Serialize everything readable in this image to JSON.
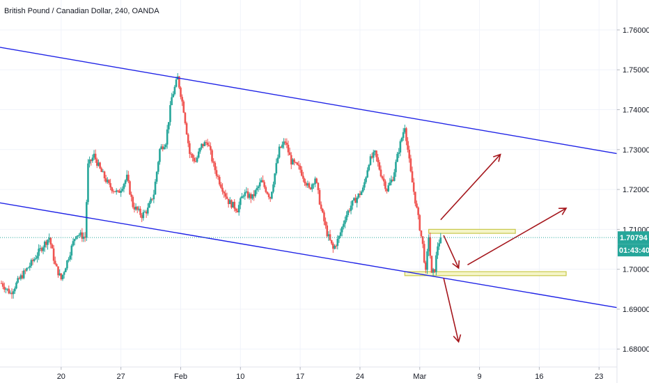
{
  "chart_data": {
    "type": "candlestick",
    "title": "British Pound / Canadian Dollar, 240, OANDA",
    "y_ticks": [
      "1.76000",
      "1.75000",
      "1.74000",
      "1.73000",
      "1.72000",
      "1.71000",
      "1.70000",
      "1.69000",
      "1.68000"
    ],
    "y_tick_values": [
      1.76,
      1.75,
      1.74,
      1.73,
      1.72,
      1.71,
      1.7,
      1.69,
      1.68
    ],
    "ylim": [
      1.6755,
      1.7675
    ],
    "x_ticks": [
      {
        "label": "20",
        "index": 20
      },
      {
        "label": "27",
        "index": 40
      },
      {
        "label": "Feb",
        "index": 60
      },
      {
        "label": "10",
        "index": 80
      },
      {
        "label": "17",
        "index": 100
      },
      {
        "label": "24",
        "index": 120
      },
      {
        "label": "Mar",
        "index": 140
      },
      {
        "label": "9",
        "index": 160
      },
      {
        "label": "16",
        "index": 180
      },
      {
        "label": "23",
        "index": 200
      }
    ],
    "xlim": [
      0,
      206
    ],
    "grid": true,
    "up_color": "#26a69a",
    "down_color": "#ef5350",
    "current_price": {
      "label": "1.70794",
      "value": 1.70794,
      "color": "#26a69a"
    },
    "countdown": {
      "label": "01:43:40"
    },
    "price_path": [
      {
        "i": 0,
        "p": 1.6965
      },
      {
        "i": 3,
        "p": 1.694
      },
      {
        "i": 6,
        "p": 1.6975
      },
      {
        "i": 10,
        "p": 1.7015
      },
      {
        "i": 14,
        "p": 1.706
      },
      {
        "i": 16,
        "p": 1.708
      },
      {
        "i": 18,
        "p": 1.701
      },
      {
        "i": 20,
        "p": 1.6975
      },
      {
        "i": 22,
        "p": 1.702
      },
      {
        "i": 25,
        "p": 1.709
      },
      {
        "i": 28,
        "p": 1.708
      },
      {
        "i": 29,
        "p": 1.726
      },
      {
        "i": 31,
        "p": 1.7285
      },
      {
        "i": 33,
        "p": 1.725
      },
      {
        "i": 36,
        "p": 1.721
      },
      {
        "i": 39,
        "p": 1.719
      },
      {
        "i": 42,
        "p": 1.723
      },
      {
        "i": 44,
        "p": 1.716
      },
      {
        "i": 47,
        "p": 1.7135
      },
      {
        "i": 49,
        "p": 1.715
      },
      {
        "i": 51,
        "p": 1.719
      },
      {
        "i": 53,
        "p": 1.73
      },
      {
        "i": 55,
        "p": 1.732
      },
      {
        "i": 57,
        "p": 1.743
      },
      {
        "i": 59,
        "p": 1.748
      },
      {
        "i": 61,
        "p": 1.74
      },
      {
        "i": 63,
        "p": 1.729
      },
      {
        "i": 65,
        "p": 1.727
      },
      {
        "i": 67,
        "p": 1.731
      },
      {
        "i": 69,
        "p": 1.732
      },
      {
        "i": 71,
        "p": 1.726
      },
      {
        "i": 73,
        "p": 1.722
      },
      {
        "i": 76,
        "p": 1.717
      },
      {
        "i": 79,
        "p": 1.715
      },
      {
        "i": 81,
        "p": 1.719
      },
      {
        "i": 84,
        "p": 1.718
      },
      {
        "i": 87,
        "p": 1.722
      },
      {
        "i": 90,
        "p": 1.718
      },
      {
        "i": 93,
        "p": 1.73
      },
      {
        "i": 95,
        "p": 1.732
      },
      {
        "i": 97,
        "p": 1.727
      },
      {
        "i": 100,
        "p": 1.725
      },
      {
        "i": 103,
        "p": 1.72
      },
      {
        "i": 105,
        "p": 1.723
      },
      {
        "i": 107,
        "p": 1.715
      },
      {
        "i": 109,
        "p": 1.709
      },
      {
        "i": 111,
        "p": 1.705
      },
      {
        "i": 113,
        "p": 1.708
      },
      {
        "i": 115,
        "p": 1.713
      },
      {
        "i": 117,
        "p": 1.716
      },
      {
        "i": 119,
        "p": 1.718
      },
      {
        "i": 121,
        "p": 1.72
      },
      {
        "i": 123,
        "p": 1.727
      },
      {
        "i": 125,
        "p": 1.729
      },
      {
        "i": 127,
        "p": 1.724
      },
      {
        "i": 129,
        "p": 1.72
      },
      {
        "i": 131,
        "p": 1.723
      },
      {
        "i": 133,
        "p": 1.73
      },
      {
        "i": 135,
        "p": 1.736
      },
      {
        "i": 137,
        "p": 1.724
      },
      {
        "i": 139,
        "p": 1.715
      },
      {
        "i": 141,
        "p": 1.706
      },
      {
        "i": 142,
        "p": 1.699
      },
      {
        "i": 143,
        "p": 1.7085
      },
      {
        "i": 144,
        "p": 1.6985
      },
      {
        "i": 145,
        "p": 1.7
      },
      {
        "i": 146,
        "p": 1.706
      },
      {
        "i": 147,
        "p": 1.7079
      }
    ]
  },
  "annotations": {
    "channel_upper": {
      "from": {
        "i": -4,
        "p": 1.7561
      },
      "to": {
        "i": 206,
        "p": 1.729
      },
      "color": "#1e22e6"
    },
    "channel_lower": {
      "from": {
        "i": -4,
        "p": 1.7171
      },
      "to": {
        "i": 206,
        "p": 1.6904
      },
      "color": "#1e22e6"
    },
    "zones": [
      {
        "i1": 143,
        "i2": 172,
        "p1": 1.709,
        "p2": 1.71,
        "fill": "#f5f5c8",
        "stroke": "#c8c84b"
      },
      {
        "i1": 135,
        "i2": 189,
        "p1": 1.6984,
        "p2": 1.6994,
        "fill": "#f5f5c8",
        "stroke": "#c8c84b"
      }
    ],
    "arrows": [
      {
        "from": {
          "i": 147,
          "p": 1.7124
        },
        "to": {
          "i": 167,
          "p": 1.7288
        }
      },
      {
        "from": {
          "i": 148,
          "p": 1.7085
        },
        "to": {
          "i": 153,
          "p": 1.7003
        }
      },
      {
        "from": {
          "i": 156,
          "p": 1.7011
        },
        "to": {
          "i": 189,
          "p": 1.7153
        }
      },
      {
        "from": {
          "i": 148,
          "p": 1.6978
        },
        "to": {
          "i": 153,
          "p": 1.6818
        }
      }
    ],
    "arrow_color": "#a5161c"
  }
}
